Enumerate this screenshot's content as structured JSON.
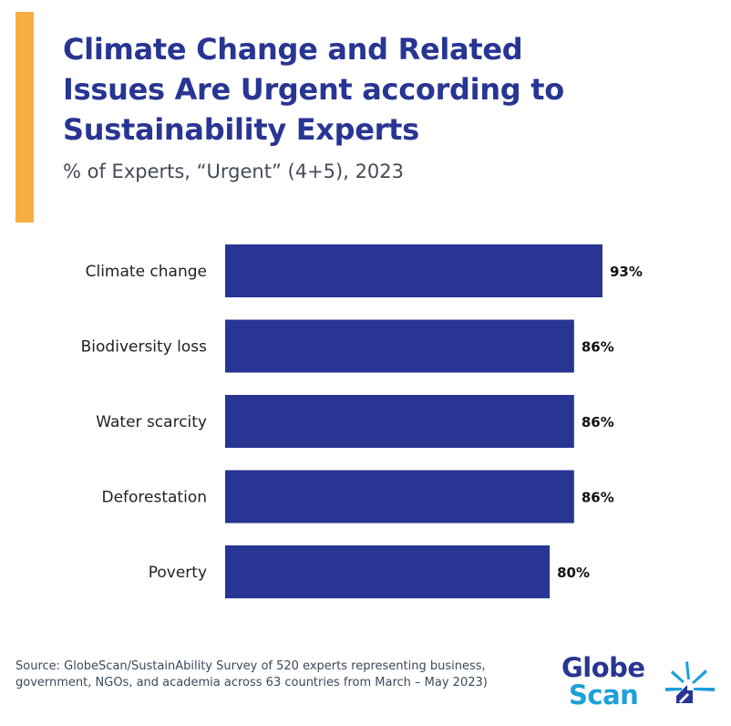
{
  "header": {
    "title_line1": "Climate Change and Related",
    "title_line2": "Issues Are Urgent according to",
    "title_line3": "Sustainability Experts",
    "subtitle": "% of Experts, “Urgent” (4+5), 2023"
  },
  "chart_data": {
    "type": "bar",
    "orientation": "horizontal",
    "title": "Climate Change and Related Issues Are Urgent according to Sustainability Experts",
    "subtitle": "% of Experts, “Urgent” (4+5), 2023",
    "categories": [
      "Climate change",
      "Biodiversity loss",
      "Water scarcity",
      "Deforestation",
      "Poverty"
    ],
    "values": [
      93,
      86,
      86,
      86,
      80
    ],
    "value_labels": [
      "93%",
      "86%",
      "86%",
      "86%",
      "80%"
    ],
    "xlabel": "",
    "ylabel": "",
    "xlim": [
      0,
      100
    ],
    "grid": false,
    "legend": "none",
    "bar_color": "#283593"
  },
  "footer": {
    "source": "Source: GlobeScan/SustainAbility Survey of 520 experts representing business, government, NGOs, and academia across 63 countries from March – May 2023)"
  },
  "logo": {
    "line1": "Globe",
    "line2": "Scan",
    "primary_color": "#283593",
    "secondary_color": "#1ea0d8"
  },
  "colors": {
    "accent": "#f6b042",
    "title": "#283593",
    "bar": "#283593"
  }
}
